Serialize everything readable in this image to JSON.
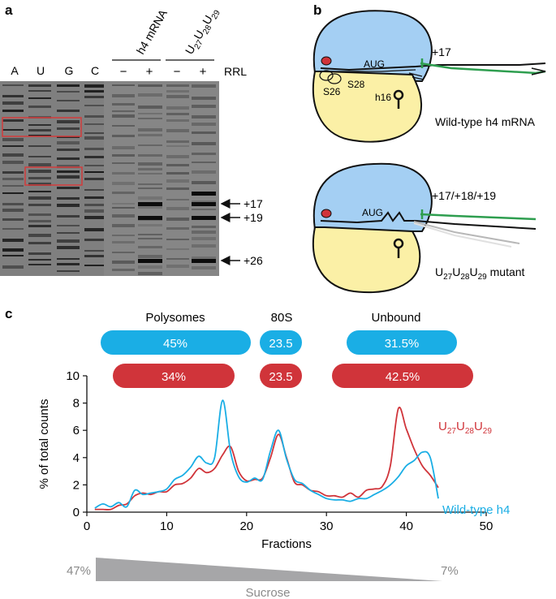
{
  "panel_a": {
    "letter": "a",
    "lanes": [
      "A",
      "U",
      "G",
      "C"
    ],
    "group_h4": "h4 mRNA",
    "group_mut_prefix": "U",
    "group_mut_sub1": "27",
    "group_mut_mid1": "U",
    "group_mut_sub2": "28",
    "group_mut_mid2": "U",
    "group_mut_sub3": "29",
    "rrl": "RRL",
    "minus": "−",
    "plus": "+",
    "markers": [
      "+17",
      "+19",
      "+26"
    ]
  },
  "panel_b": {
    "letter": "b",
    "wt_position": "+17",
    "codon": "AUG",
    "s28": "S28",
    "s26": "S26",
    "h16": "h16",
    "wt_caption": "Wild-type h4 mRNA",
    "mut_positions": "+17/+18/+19",
    "mut_caption_u": "U",
    "mut_caption_s1": "27",
    "mut_caption_s2": "28",
    "mut_caption_s3": "29",
    "mut_caption_tail": " mutant"
  },
  "panel_c": {
    "letter": "c",
    "headers": [
      "Polysomes",
      "80S",
      "Unbound"
    ],
    "pills_wt": [
      "45%",
      "23.5",
      "31.5%"
    ],
    "pills_mut": [
      "34%",
      "23.5",
      "42.5%"
    ],
    "sucrose_label": "Sucrose",
    "sucrose_high": "47%",
    "sucrose_low": "7%",
    "colors": {
      "wild_type": "#1aaee5",
      "mutant": "#d0343a",
      "ribosome_blue": "#a4cff3",
      "ribosome_yellow": "#fbf0a6",
      "green": "#2e9e4f"
    }
  },
  "chart_data": {
    "type": "line",
    "xlabel": "Fractions",
    "ylabel": "% of total counts",
    "xlim": [
      0,
      50
    ],
    "ylim": [
      0,
      10
    ],
    "xticks": [
      0,
      10,
      20,
      30,
      40,
      50
    ],
    "yticks": [
      0,
      2,
      4,
      6,
      8,
      10
    ],
    "series_labels": {
      "mutant_u": "U",
      "mutant_s1": "27",
      "mutant_s2": "28",
      "mutant_s3": "29",
      "wild_type": "Wild-type h4"
    },
    "series": [
      {
        "name": "Wild-type h4",
        "color": "#1aaee5",
        "x": [
          1,
          2,
          3,
          4,
          5,
          6,
          7,
          8,
          9,
          10,
          11,
          12,
          13,
          14,
          15,
          16,
          17,
          18,
          19,
          20,
          21,
          22,
          23,
          24,
          25,
          26,
          27,
          28,
          29,
          30,
          31,
          32,
          33,
          34,
          35,
          36,
          37,
          38,
          39,
          40,
          41,
          42,
          43,
          44
        ],
        "y": [
          0.3,
          0.6,
          0.4,
          0.7,
          0.4,
          1.6,
          1.3,
          1.4,
          1.5,
          1.7,
          2.4,
          2.7,
          3.3,
          4.1,
          3.6,
          4.0,
          8.2,
          4.4,
          2.6,
          2.2,
          2.5,
          2.4,
          4.5,
          6.0,
          3.9,
          2.4,
          2.1,
          1.6,
          1.3,
          1.0,
          0.9,
          0.9,
          0.8,
          1.0,
          1.0,
          1.3,
          1.6,
          2.0,
          2.6,
          3.4,
          3.8,
          4.4,
          4.0,
          1.0
        ]
      },
      {
        "name": "U27U28U29",
        "color": "#d0343a",
        "x": [
          1,
          2,
          3,
          4,
          5,
          6,
          7,
          8,
          9,
          10,
          11,
          12,
          13,
          14,
          15,
          16,
          17,
          18,
          19,
          20,
          21,
          22,
          23,
          24,
          25,
          26,
          27,
          28,
          29,
          30,
          31,
          32,
          33,
          34,
          35,
          36,
          37,
          38,
          39,
          40,
          41,
          42,
          43,
          44
        ],
        "y": [
          0.2,
          0.2,
          0.2,
          0.5,
          0.6,
          1.2,
          1.4,
          1.3,
          1.5,
          1.5,
          2.0,
          2.1,
          2.5,
          3.2,
          2.9,
          3.2,
          4.2,
          4.8,
          3.0,
          2.3,
          2.4,
          2.5,
          4.0,
          5.7,
          4.0,
          2.2,
          2.0,
          1.6,
          1.5,
          1.2,
          1.2,
          1.1,
          1.4,
          1.1,
          1.6,
          1.7,
          1.9,
          3.4,
          7.6,
          6.1,
          4.6,
          3.4,
          2.7,
          1.8
        ]
      }
    ]
  }
}
